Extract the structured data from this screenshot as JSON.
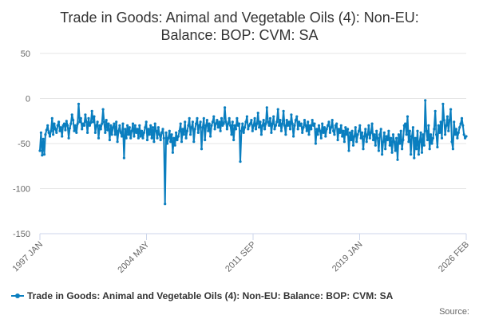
{
  "chart_data": {
    "type": "line",
    "title_line1": "Trade in Goods: Animal and Vegetable Oils (4): Non-EU:",
    "title_line2": "Balance: BOP: CVM: SA",
    "xlabel": "",
    "ylabel": "",
    "ylim": [
      -150,
      50
    ],
    "yticks": [
      "50",
      "0",
      "-50",
      "-100",
      "-150"
    ],
    "xticks": [
      "1997 JAN",
      "2004 MAY",
      "2011 SEP",
      "2019 JAN",
      "2026 FEB"
    ],
    "series": [
      {
        "name": "Trade in Goods: Animal and Vegetable Oils (4): Non-EU: Balance: BOP: CVM: SA",
        "color": "#0a7ebf",
        "values": [
          -58,
          -38,
          -63,
          -45,
          -62,
          -40,
          -35,
          -30,
          -38,
          -42,
          -36,
          -22,
          -40,
          -28,
          -34,
          -38,
          -30,
          -26,
          -36,
          -32,
          -42,
          -30,
          -28,
          -35,
          -25,
          -30,
          -44,
          -33,
          -28,
          -18,
          -24,
          -36,
          -30,
          -38,
          -28,
          -6,
          -26,
          -22,
          -34,
          -28,
          -30,
          -18,
          -26,
          -38,
          -22,
          -30,
          -27,
          -14,
          -26,
          -20,
          -38,
          -30,
          -26,
          -44,
          -30,
          -34,
          -28,
          -12,
          -26,
          -38,
          -24,
          -35,
          -28,
          -46,
          -30,
          -40,
          -32,
          -28,
          -40,
          -26,
          -48,
          -36,
          -30,
          -38,
          -42,
          -28,
          -66,
          -34,
          -44,
          -30,
          -40,
          -32,
          -44,
          -36,
          -28,
          -42,
          -30,
          -38,
          -34,
          -44,
          -30,
          -42,
          -36,
          -44,
          -38,
          -32,
          -26,
          -46,
          -34,
          -40,
          -30,
          -44,
          -32,
          -48,
          -28,
          -36,
          -44,
          -32,
          -40,
          -46,
          -38,
          -34,
          -44,
          -117,
          -38,
          -50,
          -44,
          -36,
          -48,
          -40,
          -60,
          -44,
          -52,
          -38,
          -46,
          -42,
          -36,
          -28,
          -48,
          -34,
          -40,
          -26,
          -44,
          -36,
          -30,
          -22,
          -40,
          -32,
          -26,
          -48,
          -34,
          -28,
          -22,
          -38,
          -30,
          -26,
          -56,
          -32,
          -22,
          -46,
          -30,
          -24,
          -36,
          -28,
          -42,
          -30,
          -26,
          -20,
          -34,
          -28,
          -24,
          -32,
          -26,
          -36,
          -22,
          -30,
          -28,
          -10,
          -26,
          -34,
          -28,
          -22,
          -30,
          -40,
          -26,
          -46,
          -30,
          -34,
          -22,
          -30,
          -28,
          -70,
          -36,
          -28,
          -38,
          -32,
          -26,
          -20,
          -34,
          -30,
          -28,
          -24,
          -36,
          -30,
          -22,
          -34,
          -28,
          -16,
          -32,
          -26,
          -40,
          -30,
          -24,
          -34,
          -28,
          -10,
          -26,
          -30,
          -22,
          -38,
          -28,
          -20,
          -34,
          -30,
          -26,
          -12,
          -30,
          -24,
          -36,
          -28,
          -14,
          -30,
          -40,
          -24,
          -30,
          -26,
          -34,
          -18,
          -28,
          -42,
          -30,
          -24,
          -20,
          -34,
          -26,
          -30,
          -28,
          -38,
          -32,
          -24,
          -30,
          -36,
          -26,
          -40,
          -30,
          -34,
          -24,
          -30,
          -28,
          -50,
          -34,
          -40,
          -30,
          -36,
          -44,
          -28,
          -38,
          -32,
          -42,
          -34,
          -30,
          -26,
          -38,
          -32,
          -24,
          -36,
          -40,
          -30,
          -28,
          -46,
          -34,
          -38,
          -30,
          -42,
          -36,
          -48,
          -32,
          -40,
          -34,
          -58,
          -38,
          -46,
          -36,
          -52,
          -42,
          -32,
          -48,
          -40,
          -36,
          -30,
          -44,
          -38,
          -56,
          -42,
          -34,
          -48,
          -40,
          -30,
          -44,
          -38,
          -28,
          -46,
          -40,
          -52,
          -36,
          -44,
          -58,
          -40,
          -34,
          -62,
          -48,
          -38,
          -56,
          -42,
          -46,
          -36,
          -52,
          -44,
          -60,
          -40,
          -48,
          -58,
          -44,
          -68,
          -40,
          -50,
          -36,
          -56,
          -46,
          -30,
          -28,
          -40,
          -20,
          -48,
          -36,
          -62,
          -42,
          -32,
          -66,
          -44,
          -56,
          -36,
          -62,
          -48,
          -38,
          -60,
          -40,
          -52,
          -2,
          -36,
          -46,
          -30,
          -56,
          -40,
          -50,
          -44,
          -34,
          -14,
          -40,
          -54,
          -30,
          -38,
          -26,
          -44,
          -6,
          -24,
          -40,
          -30,
          -20,
          -36,
          -24,
          -12,
          -48,
          -56,
          -26,
          -40,
          -34,
          -44,
          -38,
          -32,
          -28,
          -22,
          -30,
          -40,
          -44,
          -42
        ]
      }
    ],
    "legend_position": "bottom",
    "source_label": "Source:"
  }
}
